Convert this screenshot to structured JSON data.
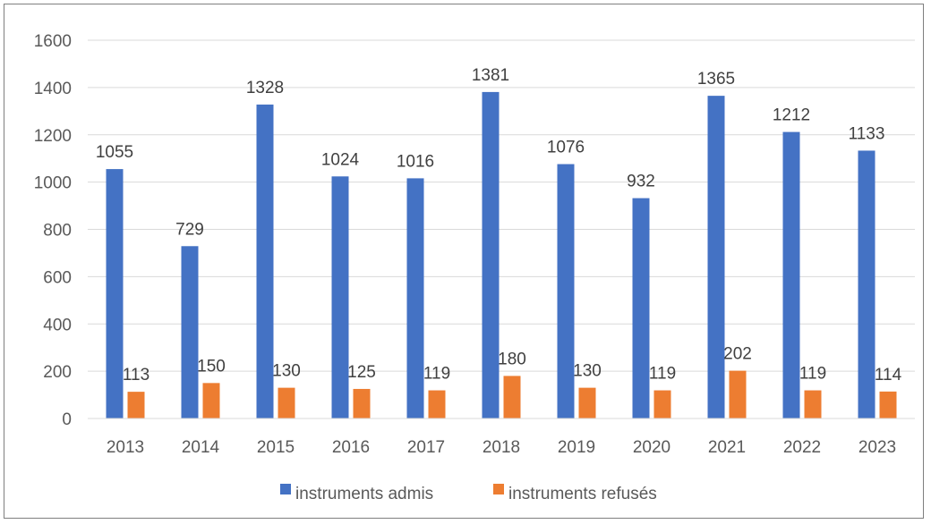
{
  "chart_data": {
    "type": "bar",
    "title": "",
    "xlabel": "",
    "ylabel": "",
    "categories": [
      "2013",
      "2014",
      "2015",
      "2016",
      "2017",
      "2018",
      "2019",
      "2020",
      "2021",
      "2022",
      "2023"
    ],
    "series": [
      {
        "name": "instruments admis",
        "color": "#4472c4",
        "values": [
          1055,
          729,
          1328,
          1024,
          1016,
          1381,
          1076,
          932,
          1365,
          1212,
          1133
        ]
      },
      {
        "name": "instruments refusés",
        "color": "#ed7d31",
        "values": [
          113,
          150,
          130,
          125,
          119,
          180,
          130,
          119,
          202,
          119,
          114
        ]
      }
    ],
    "ylim": [
      0,
      1600
    ],
    "yticks": [
      0,
      200,
      400,
      600,
      800,
      1000,
      1200,
      1400,
      1600
    ],
    "grid": true,
    "legend_position": "bottom",
    "data_labels": true
  }
}
